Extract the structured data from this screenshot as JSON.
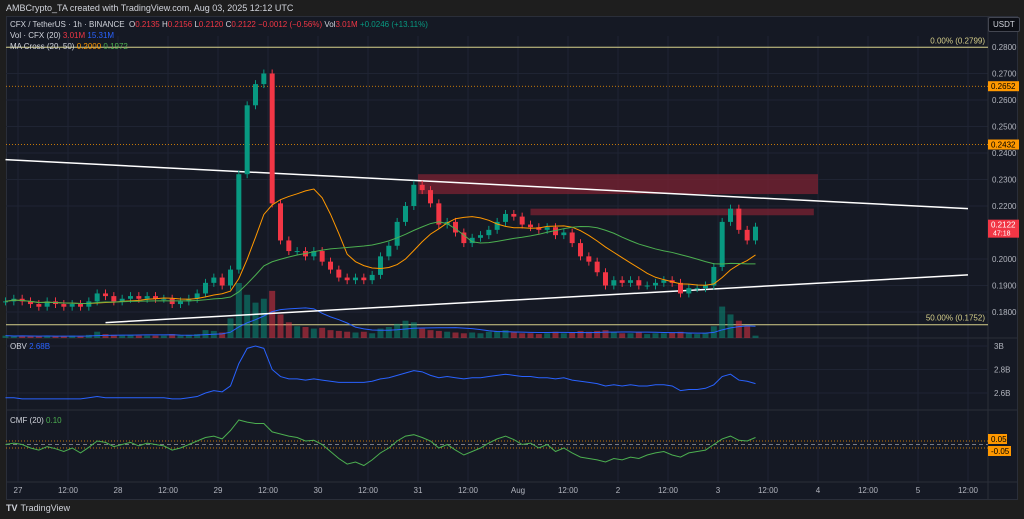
{
  "header": {
    "credit": "AMBCrypto_TA created with TradingView.com, Aug 03, 2025 12:12 UTC"
  },
  "legend": {
    "symbol": "CFX / TetherUS · 1h · BINANCE",
    "o_label": "O",
    "o": "0.2135",
    "h_label": "H",
    "h": "0.2156",
    "l_label": "L",
    "l": "0.2120",
    "c_label": "C",
    "c": "0.2122",
    "change": "−0.0012 (−0.56%)",
    "vol_label": "Vol",
    "vol": "3.01M",
    "vol_change": "+0.0246 (+13.11%)",
    "vol_ind": "Vol · CFX (20)",
    "vol_ind_v1": "3.01M",
    "vol_ind_v2": "15.31M",
    "ma_ind": "MA Cross (20, 50)",
    "ma_v1": "0.2000",
    "ma_v2": "0.1972",
    "obv_ind": "OBV",
    "obv_v": "2.68B",
    "cmf_ind": "CMF (20)",
    "cmf_v": "0.10"
  },
  "currency": "USDT",
  "footer": {
    "brand": "TradingView"
  },
  "colors": {
    "up": "#089981",
    "down": "#f23645",
    "ma20": "#ff9800",
    "ma50": "#4caf50",
    "obv": "#2962ff",
    "cmf": "#4caf50",
    "fib": "#d6cf8a",
    "level": "#ff9800",
    "zone": "#7b2232",
    "trend": "#ffffff"
  },
  "chart_data": {
    "type": "candlestick",
    "interval": "2h samples of 1h chart",
    "start": "2025-07-26 21:00",
    "step_hours": 2,
    "close": [
      0.184,
      0.185,
      0.184,
      0.183,
      0.182,
      0.184,
      0.183,
      0.182,
      0.183,
      0.182,
      0.184,
      0.187,
      0.186,
      0.184,
      0.185,
      0.186,
      0.185,
      0.186,
      0.185,
      0.185,
      0.183,
      0.184,
      0.185,
      0.187,
      0.191,
      0.193,
      0.19,
      0.196,
      0.232,
      0.258,
      0.266,
      0.27,
      0.221,
      0.207,
      0.203,
      0.203,
      0.201,
      0.203,
      0.199,
      0.196,
      0.193,
      0.192,
      0.193,
      0.192,
      0.194,
      0.201,
      0.205,
      0.214,
      0.22,
      0.228,
      0.226,
      0.221,
      0.213,
      0.214,
      0.21,
      0.206,
      0.208,
      0.209,
      0.211,
      0.214,
      0.217,
      0.216,
      0.213,
      0.212,
      0.211,
      0.212,
      0.209,
      0.21,
      0.206,
      0.201,
      0.199,
      0.195,
      0.19,
      0.192,
      0.191,
      0.192,
      0.19,
      0.19,
      0.191,
      0.192,
      0.191,
      0.187,
      0.189,
      0.189,
      0.19,
      0.197,
      0.214,
      0.219,
      0.211,
      0.207,
      0.2122
    ],
    "volume_m": [
      3,
      2,
      3,
      2,
      2,
      3,
      2,
      2,
      3,
      2,
      4,
      8,
      5,
      4,
      3,
      4,
      3,
      3,
      3,
      3,
      5,
      3,
      4,
      5,
      10,
      9,
      7,
      25,
      70,
      55,
      45,
      50,
      60,
      30,
      20,
      15,
      14,
      12,
      13,
      10,
      9,
      8,
      7,
      8,
      6,
      12,
      14,
      18,
      22,
      20,
      12,
      10,
      9,
      8,
      7,
      6,
      7,
      6,
      8,
      9,
      10,
      7,
      6,
      6,
      5,
      6,
      8,
      6,
      7,
      9,
      8,
      9,
      10,
      7,
      6,
      6,
      7,
      5,
      6,
      6,
      7,
      8,
      6,
      5,
      6,
      15,
      40,
      30,
      22,
      15,
      3.01
    ],
    "obv_b": [
      2.56,
      2.56,
      2.55,
      2.55,
      2.55,
      2.55,
      2.55,
      2.55,
      2.55,
      2.55,
      2.56,
      2.57,
      2.56,
      2.56,
      2.56,
      2.56,
      2.56,
      2.56,
      2.56,
      2.56,
      2.55,
      2.55,
      2.56,
      2.57,
      2.6,
      2.62,
      2.61,
      2.66,
      2.85,
      2.98,
      3.0,
      2.98,
      2.8,
      2.74,
      2.72,
      2.72,
      2.71,
      2.72,
      2.71,
      2.7,
      2.69,
      2.69,
      2.69,
      2.69,
      2.7,
      2.72,
      2.73,
      2.75,
      2.77,
      2.79,
      2.78,
      2.75,
      2.73,
      2.74,
      2.73,
      2.72,
      2.73,
      2.73,
      2.74,
      2.75,
      2.76,
      2.75,
      2.74,
      2.74,
      2.73,
      2.73,
      2.72,
      2.73,
      2.71,
      2.7,
      2.69,
      2.68,
      2.66,
      2.67,
      2.66,
      2.67,
      2.66,
      2.66,
      2.67,
      2.67,
      2.66,
      2.62,
      2.63,
      2.63,
      2.64,
      2.67,
      2.74,
      2.76,
      2.71,
      2.7,
      2.68
    ],
    "cmf": [
      0.0,
      0.02,
      0.0,
      -0.05,
      -0.08,
      -0.03,
      -0.06,
      -0.1,
      -0.05,
      -0.12,
      -0.04,
      0.05,
      0.03,
      -0.03,
      0.0,
      0.03,
      -0.02,
      0.02,
      0.0,
      -0.02,
      -0.08,
      -0.05,
      0.0,
      0.05,
      0.1,
      0.12,
      0.08,
      0.2,
      0.35,
      0.32,
      0.3,
      0.3,
      0.18,
      0.15,
      0.12,
      0.1,
      0.05,
      0.06,
      0.0,
      -0.1,
      -0.2,
      -0.28,
      -0.25,
      -0.3,
      -0.22,
      -0.12,
      -0.05,
      0.05,
      0.12,
      0.14,
      0.1,
      0.05,
      -0.05,
      0.0,
      -0.08,
      -0.15,
      -0.1,
      -0.05,
      0.02,
      0.08,
      0.12,
      0.07,
      0.0,
      0.02,
      -0.05,
      0.0,
      -0.1,
      -0.05,
      -0.12,
      -0.18,
      -0.2,
      -0.22,
      -0.25,
      -0.2,
      -0.22,
      -0.18,
      -0.2,
      -0.15,
      -0.12,
      -0.1,
      -0.15,
      -0.18,
      -0.12,
      -0.1,
      -0.08,
      0.0,
      0.08,
      0.12,
      0.06,
      0.05,
      0.1
    ],
    "price_ticks": [
      "0.2800",
      "0.2700",
      "0.2600",
      "0.2500",
      "0.2400",
      "0.2300",
      "0.2200",
      "0.2000",
      "0.1900",
      "0.1800"
    ],
    "obv_ticks": [
      "3B",
      "2.8B",
      "2.6B"
    ],
    "cmf_levels": [
      "0.05",
      "-0.05"
    ],
    "time_ticks": [
      "27",
      "12:00",
      "28",
      "12:00",
      "29",
      "12:00",
      "30",
      "12:00",
      "31",
      "12:00",
      "Aug",
      "12:00",
      "2",
      "12:00",
      "3",
      "12:00",
      "4",
      "12:00",
      "5",
      "12:00"
    ],
    "fib": [
      {
        "label": "0.00% (0.2799)",
        "price": 0.2799
      },
      {
        "label": "50.00% (0.1752)",
        "price": 0.1752
      }
    ],
    "levels": [
      {
        "label": "0.2652",
        "price": 0.2652
      },
      {
        "label": "0.2432",
        "price": 0.2432
      }
    ],
    "last_price": {
      "label": "0.2122",
      "countdown": "47:18",
      "price": 0.2122
    },
    "zones": [
      {
        "from": "2025-07-31 00:00",
        "to": "2025-08-04 00:00",
        "top": 0.232,
        "bottom": 0.2245
      },
      {
        "from": "2025-08-01 03:00",
        "to": "2025-08-03 23:00",
        "top": 0.219,
        "bottom": 0.2165
      }
    ],
    "trendlines": [
      {
        "from": [
          "2025-07-26 21:00",
          0.2375
        ],
        "to": [
          "2025-08-05 12:00",
          0.219
        ]
      },
      {
        "from": [
          "2025-07-27 21:00",
          0.176
        ],
        "to": [
          "2025-08-05 12:00",
          0.194
        ]
      }
    ]
  }
}
